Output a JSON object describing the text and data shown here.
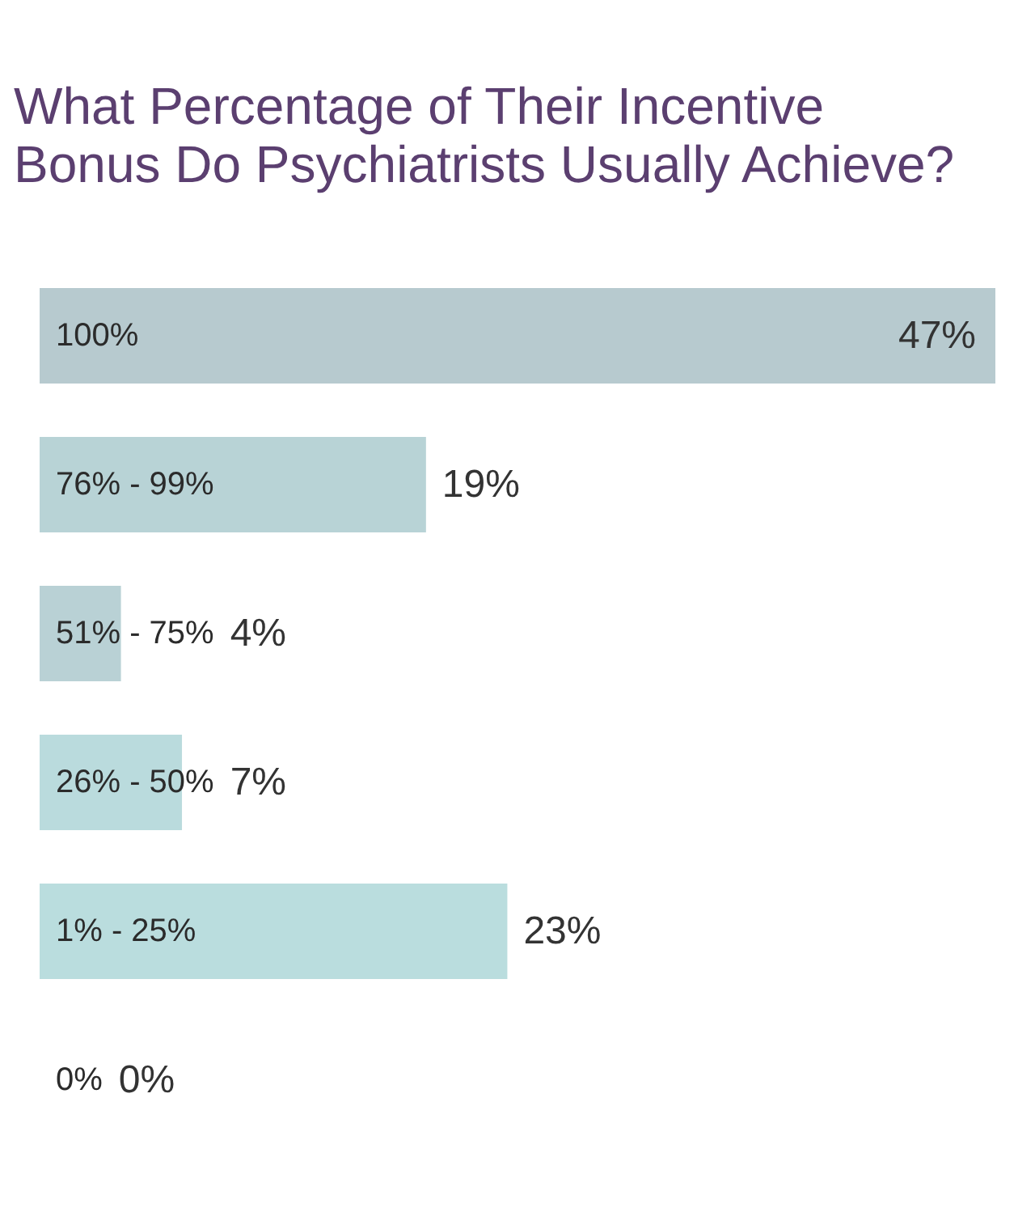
{
  "chart_data": {
    "type": "bar",
    "orientation": "horizontal",
    "title": "What Percentage of Their Incentive Bonus Do Psychiatrists Usually Achieve?",
    "categories": [
      "100%",
      "76% - 99%",
      "51% - 75%",
      "26% - 50%",
      "1% - 25%",
      "0%"
    ],
    "values": [
      47,
      19,
      4,
      7,
      23,
      0
    ],
    "colors": [
      "#b7cacf",
      "#b8d3d6",
      "#b9d1d5",
      "#badbdd",
      "#baddde",
      "#baddde"
    ],
    "value_labels": [
      "47%",
      "19%",
      "4%",
      "7%",
      "23%",
      "0%"
    ]
  }
}
